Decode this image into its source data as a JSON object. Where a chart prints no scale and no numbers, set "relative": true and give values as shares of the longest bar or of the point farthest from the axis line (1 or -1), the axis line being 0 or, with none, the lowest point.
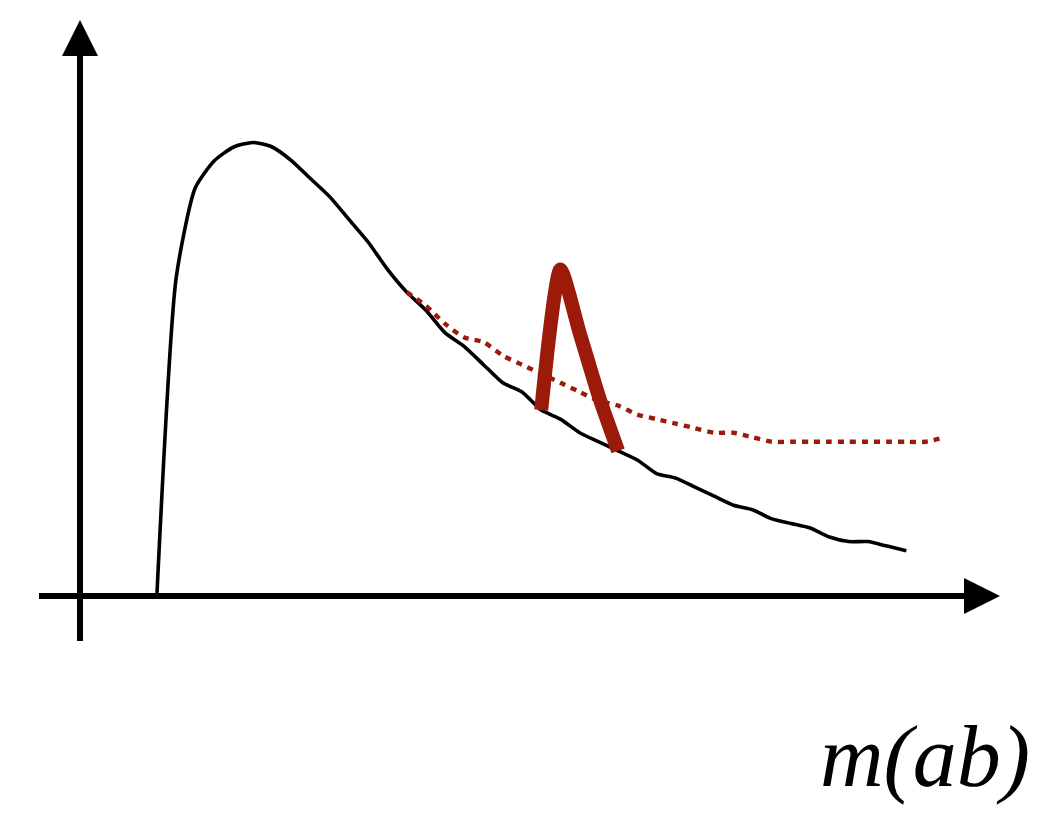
{
  "chart_data": {
    "type": "line",
    "relative": true,
    "xlabel": "m(ab)",
    "marker": "none",
    "categories": [
      null,
      null,
      null,
      null,
      null,
      null,
      null,
      null,
      null,
      null,
      null,
      null,
      null,
      null,
      null,
      null,
      null,
      null,
      null,
      null,
      null,
      null,
      null,
      null,
      null,
      null,
      null,
      null,
      null,
      null,
      null,
      null,
      null,
      null,
      null,
      null,
      null,
      null,
      null,
      null,
      null,
      null
    ],
    "series": [
      {
        "color": "#000000",
        "line_style": "solid",
        "values": [
          0,
          0.7,
          0.9,
          0.96,
          0.99,
          1.0,
          0.99,
          0.96,
          0.92,
          0.88,
          0.83,
          0.78,
          0.72,
          0.67,
          0.63,
          0.58,
          0.55,
          0.51,
          0.47,
          0.45,
          0.41,
          0.39,
          0.36,
          0.34,
          0.32,
          0.3,
          0.27,
          0.26,
          0.24,
          0.22,
          0.2,
          0.19,
          0.17,
          0.16,
          0.15,
          0.13,
          0.12,
          0.12,
          0.11,
          0.1,
          null,
          null
        ]
      },
      {
        "color": "#9b1a0a",
        "line_style": "dotted",
        "values": [
          null,
          null,
          null,
          null,
          null,
          null,
          null,
          null,
          null,
          null,
          null,
          null,
          null,
          0.67,
          0.64,
          0.6,
          0.57,
          0.56,
          0.53,
          0.51,
          0.49,
          0.47,
          0.45,
          0.43,
          0.42,
          0.4,
          0.39,
          0.38,
          0.37,
          0.36,
          0.36,
          0.35,
          0.34,
          0.34,
          0.34,
          0.34,
          0.34,
          0.34,
          0.34,
          0.34,
          0.34,
          0.35
        ]
      },
      {
        "color": "#9b1a0a",
        "line_style": "solid",
        "values": [
          null,
          null,
          null,
          null,
          null,
          null,
          null,
          null,
          null,
          null,
          null,
          null,
          null,
          null,
          null,
          null,
          null,
          null,
          null,
          null,
          0.41,
          0.72,
          0.58,
          0.44,
          0.32,
          null,
          null,
          null,
          null,
          null,
          null,
          null,
          null,
          null,
          null,
          null,
          null,
          null,
          null,
          null,
          null,
          null
        ]
      }
    ]
  }
}
